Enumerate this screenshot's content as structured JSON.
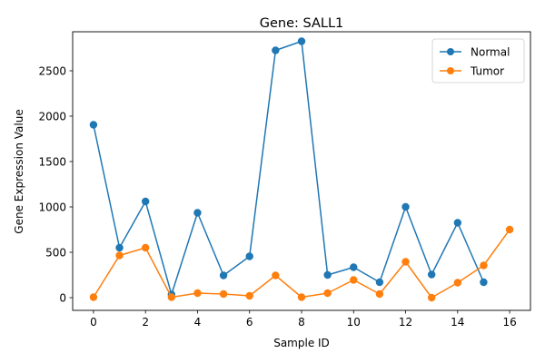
{
  "chart_data": {
    "type": "line",
    "title": "Gene: SALL1",
    "xlabel": "Sample ID",
    "ylabel": "Gene Expression Value",
    "xlim": [
      -0.8,
      16.8
    ],
    "ylim": [
      -140,
      2930
    ],
    "xticks": [
      0,
      2,
      4,
      6,
      8,
      10,
      12,
      14,
      16
    ],
    "yticks": [
      0,
      500,
      1000,
      1500,
      2000,
      2500
    ],
    "grid": false,
    "legend_position": "top-right",
    "series": [
      {
        "name": "Normal",
        "color": "#1f77b4",
        "x": [
          0,
          1,
          2,
          3,
          4,
          5,
          6,
          7,
          8,
          9,
          10,
          11,
          12,
          13,
          14,
          15
        ],
        "values": [
          1905,
          550,
          1060,
          35,
          935,
          245,
          455,
          2725,
          2825,
          250,
          335,
          170,
          1000,
          255,
          825,
          170
        ]
      },
      {
        "name": "Tumor",
        "color": "#ff7f0e",
        "x": [
          0,
          1,
          2,
          3,
          4,
          5,
          6,
          7,
          8,
          9,
          10,
          11,
          12,
          13,
          14,
          15,
          16
        ],
        "values": [
          5,
          465,
          550,
          5,
          50,
          40,
          20,
          245,
          5,
          50,
          195,
          40,
          395,
          0,
          165,
          355,
          750
        ]
      }
    ]
  }
}
